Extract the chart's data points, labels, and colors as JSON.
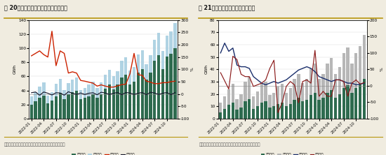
{
  "fig20_title": "图 20：中国动力及储能电池分类型产量",
  "fig21_title": "图 21：中国动力电池分类型装车量",
  "source_text": "数据来源：中国汽车动力电池产业创新联盟，新湖研究所",
  "x_labels": [
    "2022-01",
    "2022-04",
    "2022-07",
    "2022-10",
    "2023-01",
    "2023-04",
    "2023-07",
    "2023-10",
    "2024-01",
    "2024-04",
    "2024-07",
    "2024-10"
  ],
  "n_bars": 36,
  "fig20": {
    "lfp": [
      20,
      25,
      30,
      33,
      22,
      26,
      32,
      37,
      28,
      35,
      38,
      40,
      28,
      30,
      32,
      35,
      30,
      35,
      43,
      48,
      42,
      48,
      58,
      62,
      48,
      52,
      65,
      70,
      55,
      65,
      82,
      90,
      70,
      88,
      92,
      100
    ],
    "ternary": [
      12,
      13,
      16,
      18,
      11,
      12,
      17,
      19,
      13,
      15,
      17,
      18,
      13,
      14,
      16,
      17,
      14,
      16,
      19,
      21,
      18,
      19,
      24,
      25,
      20,
      21,
      26,
      27,
      22,
      25,
      30,
      32,
      26,
      30,
      32,
      36
    ],
    "yoy": [
      155,
      165,
      175,
      160,
      150,
      255,
      115,
      175,
      165,
      85,
      90,
      85,
      55,
      52,
      48,
      44,
      32,
      37,
      32,
      28,
      28,
      33,
      38,
      40,
      82,
      165,
      78,
      76,
      52,
      48,
      42,
      42,
      46,
      46,
      50,
      52
    ],
    "mom": [
      5,
      8,
      -5,
      8,
      3,
      -4,
      5,
      4,
      -5,
      9,
      3,
      -2,
      4,
      -2,
      3,
      5,
      -3,
      7,
      4,
      -2,
      3,
      6,
      -3,
      6,
      4,
      -2,
      3,
      6,
      -3,
      7,
      4,
      -2,
      3,
      6,
      -3,
      6
    ],
    "ylim_left": [
      0,
      140
    ],
    "ylim_right": [
      -100,
      300
    ],
    "yticks_left": [
      0,
      20,
      40,
      60,
      80,
      100,
      120,
      140
    ],
    "yticks_right": [
      -100,
      -50,
      0,
      50,
      100,
      150,
      200,
      250,
      300
    ]
  },
  "fig21": {
    "lfp": [
      5,
      8,
      11,
      13,
      7,
      9,
      14,
      16,
      8,
      10,
      13,
      14,
      9,
      10,
      12,
      13,
      10,
      12,
      15,
      17,
      14,
      15,
      19,
      21,
      15,
      17,
      21,
      23,
      17,
      20,
      25,
      27,
      21,
      25,
      28,
      32
    ],
    "ternary": [
      8,
      10,
      13,
      15,
      9,
      11,
      16,
      18,
      10,
      12,
      15,
      16,
      10,
      11,
      14,
      15,
      11,
      13,
      17,
      19,
      15,
      17,
      22,
      24,
      17,
      19,
      24,
      26,
      19,
      22,
      28,
      31,
      24,
      28,
      31,
      36
    ],
    "yoy": [
      100,
      130,
      105,
      115,
      63,
      58,
      58,
      53,
      28,
      18,
      8,
      3,
      8,
      13,
      8,
      13,
      18,
      28,
      38,
      48,
      53,
      58,
      53,
      43,
      28,
      23,
      18,
      13,
      18,
      18,
      13,
      8,
      8,
      3,
      5,
      8
    ],
    "mom": [
      40,
      15,
      -10,
      90,
      80,
      35,
      28,
      28,
      -2,
      3,
      8,
      18,
      53,
      78,
      -82,
      -52,
      -2,
      13,
      3,
      -52,
      13,
      18,
      8,
      108,
      -32,
      -17,
      -32,
      -32,
      18,
      18,
      13,
      -32,
      8,
      18,
      5,
      10
    ],
    "ylim_left": [
      0,
      80
    ],
    "ylim_right": [
      -100,
      200
    ],
    "yticks_left": [
      0,
      10,
      20,
      30,
      40,
      50,
      60,
      70,
      80
    ],
    "yticks_right": [
      -100,
      -50,
      0,
      50,
      100,
      150,
      200
    ]
  },
  "colors": {
    "lfp": "#2e6b4f",
    "ternary_fig20": "#a8cfe0",
    "ternary_fig21": "#b0b0b0",
    "yoy_fig20": "#cc2200",
    "mom_fig20": "#1a1a2e",
    "yoy_fig21": "#1a2e6b",
    "mom_fig21": "#8b1a1a",
    "separator_line": "#b8960c",
    "bg": "#f0ece0"
  }
}
